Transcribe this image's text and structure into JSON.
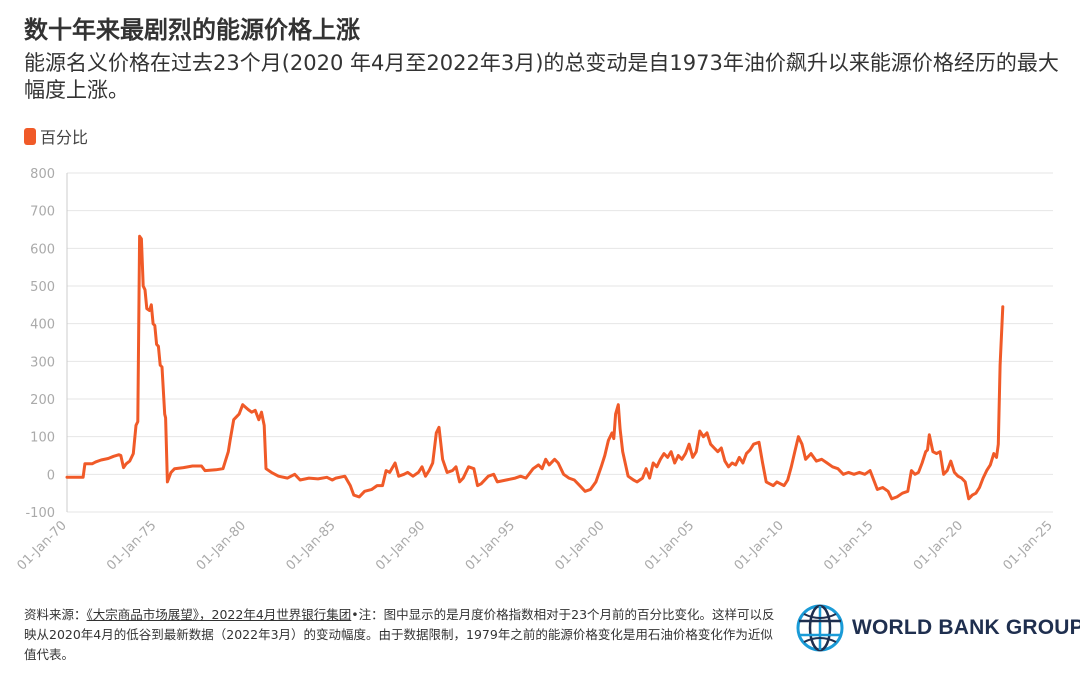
{
  "title": "数十年来最剧烈的能源价格上涨",
  "subtitle": "能源名义价格在过去23个月(2020 年4月至2022年3月)的总变动是自1973年油价飙升以来能源价格经历的最大幅度上涨。",
  "colors": {
    "series": "#f05a28",
    "grid": "#e6e6e6",
    "tick_text": "#aaaaaa"
  },
  "footnote": {
    "source_prefix": "资料来源：",
    "source_link": "《大宗商品市场展望》，2022年4月世界银行集团",
    "note": "•注：图中显示的是月度价格指数相对于23个月前的百分比变化。这样可以反映从2020年4月的低谷到最新数据（2022年3月）的变动幅度。由于数据限制，1979年之前的能源价格变化是用石油价格变化作为近似值代表。"
  },
  "logo": {
    "icon": "globe-icon",
    "text": "WORLD BANK GROUP"
  },
  "chart_data": {
    "type": "line",
    "legend": {
      "position": "top-left",
      "entries": [
        "百分比"
      ]
    },
    "xlabel": "",
    "ylabel": "",
    "grid": true,
    "x_range": [
      1970.0,
      2025.0
    ],
    "ylim": [
      -100,
      800
    ],
    "yticks": [
      -100,
      0,
      100,
      200,
      300,
      400,
      500,
      600,
      700,
      800
    ],
    "xticks": [
      {
        "x": 1970,
        "label": "01-Jan-70"
      },
      {
        "x": 1975,
        "label": "01-Jan-75"
      },
      {
        "x": 1980,
        "label": "01-Jan-80"
      },
      {
        "x": 1985,
        "label": "01-Jan-85"
      },
      {
        "x": 1990,
        "label": "01-Jan-90"
      },
      {
        "x": 1995,
        "label": "01-Jan-95"
      },
      {
        "x": 2000,
        "label": "01-Jan-00"
      },
      {
        "x": 2005,
        "label": "01-Jan-05"
      },
      {
        "x": 2010,
        "label": "01-Jan-10"
      },
      {
        "x": 2015,
        "label": "01-Jan-15"
      },
      {
        "x": 2020,
        "label": "01-Jan-20"
      },
      {
        "x": 2025,
        "label": "01-Jan-25"
      }
    ],
    "series": [
      {
        "name": "百分比",
        "points": [
          [
            1970.0,
            -8
          ],
          [
            1970.6,
            -8
          ],
          [
            1970.9,
            -8
          ],
          [
            1971.0,
            28
          ],
          [
            1971.4,
            28
          ],
          [
            1971.6,
            33
          ],
          [
            1971.9,
            38
          ],
          [
            1972.3,
            42
          ],
          [
            1972.6,
            48
          ],
          [
            1972.9,
            52
          ],
          [
            1973.0,
            50
          ],
          [
            1973.15,
            18
          ],
          [
            1973.3,
            28
          ],
          [
            1973.5,
            35
          ],
          [
            1973.7,
            55
          ],
          [
            1973.85,
            130
          ],
          [
            1973.95,
            140
          ],
          [
            1974.05,
            632
          ],
          [
            1974.15,
            625
          ],
          [
            1974.25,
            500
          ],
          [
            1974.35,
            490
          ],
          [
            1974.45,
            440
          ],
          [
            1974.6,
            435
          ],
          [
            1974.7,
            450
          ],
          [
            1974.8,
            400
          ],
          [
            1974.9,
            395
          ],
          [
            1975.0,
            345
          ],
          [
            1975.1,
            340
          ],
          [
            1975.2,
            290
          ],
          [
            1975.3,
            285
          ],
          [
            1975.45,
            160
          ],
          [
            1975.5,
            150
          ],
          [
            1975.6,
            -20
          ],
          [
            1975.8,
            5
          ],
          [
            1976.0,
            15
          ],
          [
            1976.5,
            18
          ],
          [
            1977.0,
            22
          ],
          [
            1977.5,
            22
          ],
          [
            1977.7,
            10
          ],
          [
            1978.3,
            12
          ],
          [
            1978.7,
            15
          ],
          [
            1979.0,
            60
          ],
          [
            1979.1,
            90
          ],
          [
            1979.3,
            145
          ],
          [
            1979.6,
            160
          ],
          [
            1979.8,
            185
          ],
          [
            1980.1,
            172
          ],
          [
            1980.3,
            165
          ],
          [
            1980.5,
            170
          ],
          [
            1980.7,
            145
          ],
          [
            1980.85,
            165
          ],
          [
            1981.0,
            130
          ],
          [
            1981.1,
            15
          ],
          [
            1981.4,
            5
          ],
          [
            1981.8,
            -5
          ],
          [
            1982.3,
            -10
          ],
          [
            1982.7,
            0
          ],
          [
            1983.0,
            -15
          ],
          [
            1983.5,
            -10
          ],
          [
            1984.0,
            -12
          ],
          [
            1984.5,
            -8
          ],
          [
            1984.8,
            -15
          ],
          [
            1985.0,
            -10
          ],
          [
            1985.5,
            -5
          ],
          [
            1985.8,
            -30
          ],
          [
            1986.0,
            -55
          ],
          [
            1986.3,
            -60
          ],
          [
            1986.6,
            -45
          ],
          [
            1987.0,
            -40
          ],
          [
            1987.3,
            -30
          ],
          [
            1987.6,
            -30
          ],
          [
            1987.8,
            10
          ],
          [
            1988.0,
            5
          ],
          [
            1988.3,
            30
          ],
          [
            1988.5,
            -5
          ],
          [
            1988.8,
            0
          ],
          [
            1989.0,
            5
          ],
          [
            1989.3,
            -5
          ],
          [
            1989.6,
            5
          ],
          [
            1989.8,
            20
          ],
          [
            1990.0,
            -5
          ],
          [
            1990.2,
            10
          ],
          [
            1990.4,
            30
          ],
          [
            1990.6,
            110
          ],
          [
            1990.75,
            125
          ],
          [
            1990.95,
            40
          ],
          [
            1991.2,
            5
          ],
          [
            1991.5,
            10
          ],
          [
            1991.7,
            20
          ],
          [
            1991.9,
            -20
          ],
          [
            1992.1,
            -10
          ],
          [
            1992.4,
            20
          ],
          [
            1992.7,
            15
          ],
          [
            1992.9,
            -30
          ],
          [
            1993.1,
            -25
          ],
          [
            1993.5,
            -5
          ],
          [
            1993.8,
            0
          ],
          [
            1994.0,
            -20
          ],
          [
            1994.5,
            -15
          ],
          [
            1995.0,
            -10
          ],
          [
            1995.3,
            -5
          ],
          [
            1995.6,
            -10
          ],
          [
            1996.0,
            15
          ],
          [
            1996.3,
            25
          ],
          [
            1996.5,
            15
          ],
          [
            1996.7,
            40
          ],
          [
            1996.9,
            25
          ],
          [
            1997.2,
            40
          ],
          [
            1997.4,
            30
          ],
          [
            1997.7,
            0
          ],
          [
            1998.0,
            -10
          ],
          [
            1998.3,
            -15
          ],
          [
            1998.6,
            -30
          ],
          [
            1998.9,
            -45
          ],
          [
            1999.2,
            -40
          ],
          [
            1999.5,
            -20
          ],
          [
            1999.8,
            20
          ],
          [
            2000.0,
            50
          ],
          [
            2000.2,
            90
          ],
          [
            2000.4,
            110
          ],
          [
            2000.5,
            95
          ],
          [
            2000.6,
            160
          ],
          [
            2000.75,
            185
          ],
          [
            2000.85,
            120
          ],
          [
            2001.0,
            60
          ],
          [
            2001.3,
            -5
          ],
          [
            2001.6,
            -15
          ],
          [
            2001.8,
            -20
          ],
          [
            2002.1,
            -10
          ],
          [
            2002.3,
            15
          ],
          [
            2002.5,
            -10
          ],
          [
            2002.7,
            30
          ],
          [
            2002.9,
            20
          ],
          [
            2003.1,
            40
          ],
          [
            2003.3,
            55
          ],
          [
            2003.5,
            45
          ],
          [
            2003.7,
            60
          ],
          [
            2003.9,
            30
          ],
          [
            2004.1,
            50
          ],
          [
            2004.3,
            40
          ],
          [
            2004.5,
            55
          ],
          [
            2004.7,
            80
          ],
          [
            2004.9,
            45
          ],
          [
            2005.1,
            60
          ],
          [
            2005.3,
            115
          ],
          [
            2005.5,
            100
          ],
          [
            2005.7,
            110
          ],
          [
            2005.9,
            80
          ],
          [
            2006.1,
            70
          ],
          [
            2006.3,
            60
          ],
          [
            2006.5,
            70
          ],
          [
            2006.7,
            35
          ],
          [
            2006.9,
            20
          ],
          [
            2007.1,
            30
          ],
          [
            2007.3,
            25
          ],
          [
            2007.5,
            45
          ],
          [
            2007.7,
            30
          ],
          [
            2007.9,
            55
          ],
          [
            2008.1,
            65
          ],
          [
            2008.3,
            80
          ],
          [
            2008.6,
            85
          ],
          [
            2008.8,
            30
          ],
          [
            2009.0,
            -20
          ],
          [
            2009.2,
            -25
          ],
          [
            2009.4,
            -30
          ],
          [
            2009.6,
            -20
          ],
          [
            2009.8,
            -25
          ],
          [
            2010.0,
            -30
          ],
          [
            2010.2,
            -15
          ],
          [
            2010.4,
            20
          ],
          [
            2010.6,
            60
          ],
          [
            2010.8,
            100
          ],
          [
            2011.0,
            80
          ],
          [
            2011.2,
            40
          ],
          [
            2011.5,
            55
          ],
          [
            2011.8,
            35
          ],
          [
            2012.1,
            40
          ],
          [
            2012.4,
            30
          ],
          [
            2012.7,
            20
          ],
          [
            2013.0,
            15
          ],
          [
            2013.3,
            0
          ],
          [
            2013.6,
            5
          ],
          [
            2013.9,
            0
          ],
          [
            2014.2,
            5
          ],
          [
            2014.5,
            0
          ],
          [
            2014.8,
            10
          ],
          [
            2015.0,
            -15
          ],
          [
            2015.2,
            -40
          ],
          [
            2015.5,
            -35
          ],
          [
            2015.8,
            -45
          ],
          [
            2016.0,
            -65
          ],
          [
            2016.3,
            -60
          ],
          [
            2016.6,
            -50
          ],
          [
            2016.9,
            -45
          ],
          [
            2017.1,
            10
          ],
          [
            2017.3,
            0
          ],
          [
            2017.5,
            5
          ],
          [
            2017.7,
            30
          ],
          [
            2017.9,
            60
          ],
          [
            2018.0,
            65
          ],
          [
            2018.1,
            105
          ],
          [
            2018.3,
            60
          ],
          [
            2018.5,
            55
          ],
          [
            2018.7,
            60
          ],
          [
            2018.9,
            0
          ],
          [
            2019.1,
            10
          ],
          [
            2019.3,
            35
          ],
          [
            2019.5,
            5
          ],
          [
            2019.7,
            -5
          ],
          [
            2019.9,
            -10
          ],
          [
            2020.1,
            -20
          ],
          [
            2020.3,
            -65
          ],
          [
            2020.5,
            -55
          ],
          [
            2020.7,
            -50
          ],
          [
            2020.9,
            -35
          ],
          [
            2021.1,
            -10
          ],
          [
            2021.3,
            10
          ],
          [
            2021.5,
            25
          ],
          [
            2021.7,
            55
          ],
          [
            2021.85,
            45
          ],
          [
            2021.95,
            80
          ],
          [
            2022.05,
            290
          ],
          [
            2022.2,
            445
          ]
        ]
      }
    ]
  }
}
